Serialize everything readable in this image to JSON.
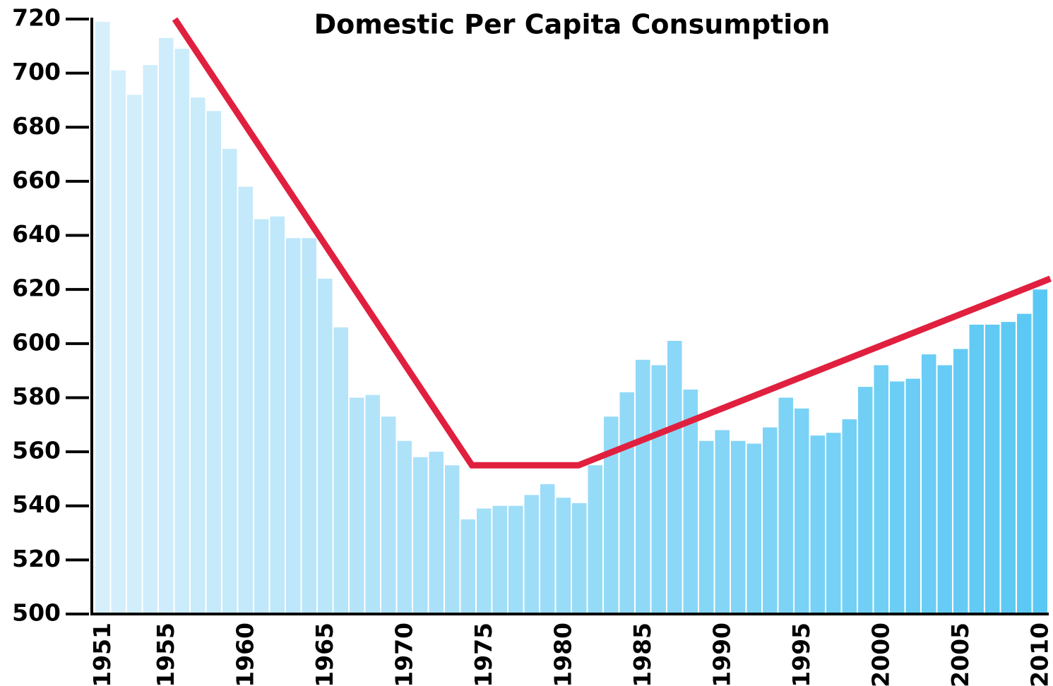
{
  "chart_data": {
    "type": "bar",
    "title": "Domestic Per Capita Consumption",
    "categories": [
      "1951",
      null,
      null,
      null,
      "1955",
      null,
      null,
      null,
      null,
      "1960",
      null,
      null,
      null,
      null,
      "1965",
      null,
      null,
      null,
      null,
      "1970",
      null,
      null,
      null,
      null,
      "1975",
      null,
      null,
      null,
      null,
      "1980",
      null,
      null,
      null,
      null,
      "1985",
      null,
      null,
      null,
      null,
      "1990",
      null,
      null,
      null,
      null,
      "1995",
      null,
      null,
      null,
      null,
      "2000",
      null,
      null,
      null,
      null,
      "2005",
      null,
      null,
      null,
      null,
      "2010"
    ],
    "values": [
      719,
      701,
      692,
      703,
      713,
      709,
      691,
      686,
      672,
      658,
      646,
      647,
      639,
      639,
      624,
      606,
      580,
      581,
      573,
      564,
      558,
      560,
      555,
      535,
      539,
      540,
      540,
      544,
      548,
      543,
      541,
      555,
      573,
      582,
      594,
      592,
      601,
      583,
      564,
      568,
      564,
      563,
      569,
      580,
      576,
      566,
      567,
      572,
      584,
      592,
      586,
      587,
      596,
      592,
      598,
      607,
      607,
      608,
      611,
      620
    ],
    "color_start": "#d6effb",
    "color_end": "#5ac8f4",
    "ylim": [
      500,
      720
    ],
    "yticks": [
      500,
      520,
      540,
      560,
      580,
      600,
      620,
      640,
      660,
      680,
      700,
      720
    ],
    "trend_line": {
      "color": "#e0203e",
      "x": [
        1955.5,
        1974.2,
        1980.9,
        2010.6
      ],
      "values": [
        720,
        555,
        555,
        624
      ]
    }
  }
}
